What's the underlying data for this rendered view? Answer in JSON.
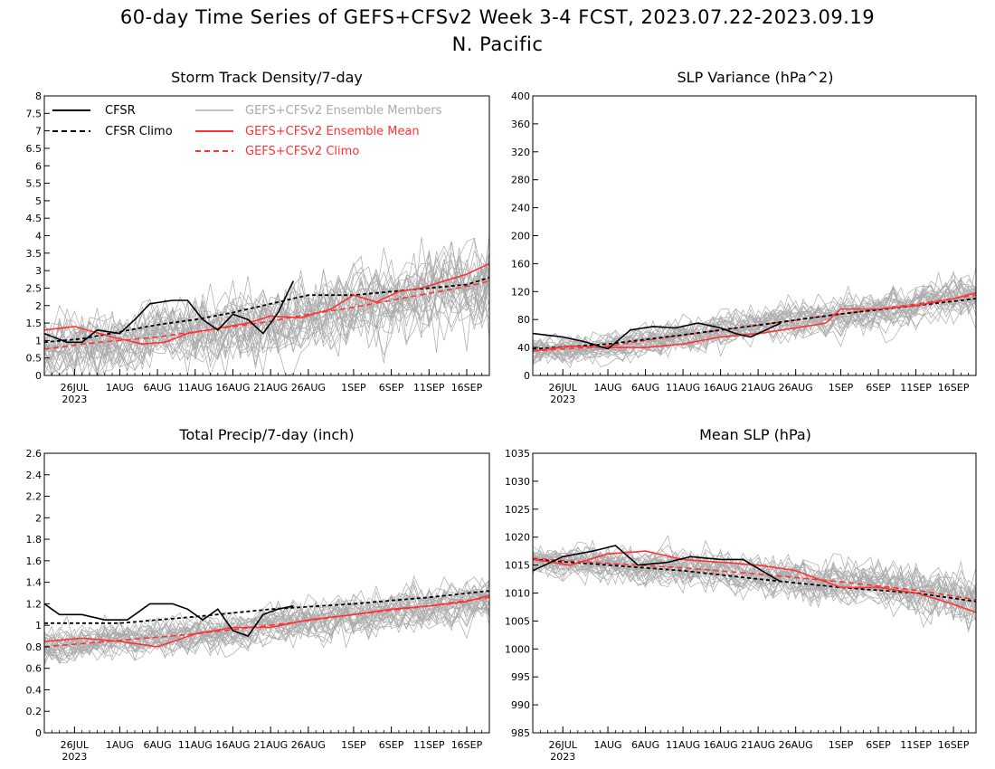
{
  "figure": {
    "title": "60-day Time Series of GEFS+CFSv2 Week 3-4 FCST, 2023.07.22-2023.09.19",
    "subtitle": "N. Pacific"
  },
  "colors": {
    "cfsr": "#000000",
    "members": "#aaaaaa",
    "ens_mean": "#ff3333",
    "ens_climo": "#ff3333"
  },
  "legend": {
    "cfsr": "CFSR",
    "cfsr_climo": "CFSR Climo",
    "members": "GEFS+CFSv2 Ensemble Members",
    "ens_mean": "GEFS+CFSv2 Ensemble Mean",
    "ens_climo": "GEFS+CFSv2 Climo"
  },
  "x_axis": {
    "days": 60,
    "start": "2023-07-22",
    "end": "2023-09-19",
    "year_label": "2023",
    "ticks": [
      {
        "date": "2023-07-26",
        "label": "26JUL"
      },
      {
        "date": "2023-08-01",
        "label": "1AUG"
      },
      {
        "date": "2023-08-06",
        "label": "6AUG"
      },
      {
        "date": "2023-08-11",
        "label": "11AUG"
      },
      {
        "date": "2023-08-16",
        "label": "16AUG"
      },
      {
        "date": "2023-08-21",
        "label": "21AUG"
      },
      {
        "date": "2023-08-26",
        "label": "26AUG"
      },
      {
        "date": "2023-09-01",
        "label": "1SEP"
      },
      {
        "date": "2023-09-06",
        "label": "6SEP"
      },
      {
        "date": "2023-09-11",
        "label": "11SEP"
      },
      {
        "date": "2023-09-16",
        "label": "16SEP"
      }
    ]
  },
  "chart_data": [
    {
      "type": "line",
      "title": "Storm Track Density/7-day",
      "ylim": [
        0,
        8
      ],
      "yticks": [
        "0",
        "0.5",
        "1",
        "1.5",
        "2",
        "2.5",
        "3",
        "3.5",
        "4",
        "4.5",
        "5",
        "5.5",
        "6",
        "6.5",
        "7",
        "7.5",
        "8"
      ],
      "members": {
        "count": 30,
        "spread": 0.8,
        "spread_end": 1.15
      },
      "series": [
        {
          "name": "CFSR",
          "x": [
            "2023-07-22",
            "2023-07-25",
            "2023-07-27",
            "2023-07-29",
            "2023-08-01",
            "2023-08-03",
            "2023-08-05",
            "2023-08-08",
            "2023-08-10",
            "2023-08-12",
            "2023-08-14",
            "2023-08-16",
            "2023-08-18",
            "2023-08-20",
            "2023-08-22",
            "2023-08-24"
          ],
          "values": [
            1.2,
            0.95,
            0.95,
            1.3,
            1.2,
            1.6,
            2.05,
            2.15,
            2.15,
            1.6,
            1.3,
            1.75,
            1.6,
            1.2,
            1.8,
            2.7
          ]
        },
        {
          "name": "CFSR Climo",
          "x": [
            "2023-07-22",
            "2023-07-27",
            "2023-08-01",
            "2023-08-06",
            "2023-08-11",
            "2023-08-16",
            "2023-08-21",
            "2023-08-26",
            "2023-09-01",
            "2023-09-06",
            "2023-09-11",
            "2023-09-16",
            "2023-09-19"
          ],
          "values": [
            0.95,
            1.05,
            1.25,
            1.45,
            1.6,
            1.8,
            2.05,
            2.3,
            2.3,
            2.4,
            2.5,
            2.6,
            2.8
          ]
        },
        {
          "name": "GEFS+CFSv2 Ensemble Mean",
          "x": [
            "2023-07-22",
            "2023-07-26",
            "2023-07-31",
            "2023-08-04",
            "2023-08-07",
            "2023-08-10",
            "2023-08-14",
            "2023-08-18",
            "2023-08-21",
            "2023-08-25",
            "2023-08-29",
            "2023-09-01",
            "2023-09-04",
            "2023-09-07",
            "2023-09-10",
            "2023-09-13",
            "2023-09-16",
            "2023-09-19"
          ],
          "values": [
            1.3,
            1.4,
            1.1,
            0.9,
            0.95,
            1.2,
            1.35,
            1.5,
            1.7,
            1.65,
            1.9,
            2.3,
            2.1,
            2.4,
            2.5,
            2.7,
            2.9,
            3.2
          ]
        },
        {
          "name": "GEFS+CFSv2 Climo",
          "x": [
            "2023-07-22",
            "2023-07-27",
            "2023-08-01",
            "2023-08-06",
            "2023-08-11",
            "2023-08-16",
            "2023-08-21",
            "2023-08-26",
            "2023-09-01",
            "2023-09-06",
            "2023-09-11",
            "2023-09-16",
            "2023-09-19"
          ],
          "values": [
            0.75,
            0.9,
            1.0,
            1.1,
            1.25,
            1.4,
            1.55,
            1.75,
            1.95,
            2.15,
            2.35,
            2.55,
            2.7
          ]
        }
      ]
    },
    {
      "type": "line",
      "title": "SLP Variance (hPa^2)",
      "ylim": [
        0,
        400
      ],
      "yticks": [
        "0",
        "40",
        "80",
        "120",
        "160",
        "200",
        "240",
        "280",
        "320",
        "360",
        "400"
      ],
      "members": {
        "count": 30,
        "spread": 18,
        "spread_end": 30
      },
      "series": [
        {
          "name": "CFSR",
          "x": [
            "2023-07-22",
            "2023-07-26",
            "2023-07-29",
            "2023-08-01",
            "2023-08-04",
            "2023-08-07",
            "2023-08-10",
            "2023-08-13",
            "2023-08-16",
            "2023-08-18",
            "2023-08-20",
            "2023-08-24"
          ],
          "values": [
            60,
            55,
            48,
            38,
            65,
            70,
            68,
            75,
            68,
            60,
            55,
            75
          ]
        },
        {
          "name": "CFSR Climo",
          "x": [
            "2023-07-22",
            "2023-08-01",
            "2023-08-11",
            "2023-08-21",
            "2023-09-01",
            "2023-09-11",
            "2023-09-19"
          ],
          "values": [
            38,
            45,
            58,
            72,
            88,
            100,
            110
          ]
        },
        {
          "name": "GEFS+CFSv2 Ensemble Mean",
          "x": [
            "2023-07-22",
            "2023-07-27",
            "2023-08-01",
            "2023-08-06",
            "2023-08-11",
            "2023-08-16",
            "2023-08-21",
            "2023-08-26",
            "2023-08-30",
            "2023-09-01",
            "2023-09-06",
            "2023-09-11",
            "2023-09-16",
            "2023-09-19"
          ],
          "values": [
            35,
            42,
            40,
            40,
            45,
            55,
            60,
            68,
            75,
            95,
            95,
            100,
            110,
            118
          ]
        },
        {
          "name": "GEFS+CFSv2 Climo",
          "x": [
            "2023-07-22",
            "2023-08-01",
            "2023-08-11",
            "2023-08-21",
            "2023-09-01",
            "2023-09-11",
            "2023-09-19"
          ],
          "values": [
            35,
            42,
            58,
            72,
            88,
            102,
            115
          ]
        }
      ]
    },
    {
      "type": "line",
      "title": "Total Precip/7-day (inch)",
      "ylim": [
        0,
        2.6
      ],
      "yticks": [
        "0",
        "0.2",
        "0.4",
        "0.6",
        "0.8",
        "1",
        "1.2",
        "1.4",
        "1.6",
        "1.8",
        "2",
        "2.2",
        "2.4",
        "2.6"
      ],
      "members": {
        "count": 30,
        "spread": 0.15,
        "spread_end": 0.2
      },
      "series": [
        {
          "name": "CFSR",
          "x": [
            "2023-07-22",
            "2023-07-24",
            "2023-07-27",
            "2023-07-30",
            "2023-08-02",
            "2023-08-05",
            "2023-08-08",
            "2023-08-10",
            "2023-08-12",
            "2023-08-14",
            "2023-08-16",
            "2023-08-18",
            "2023-08-20",
            "2023-08-22",
            "2023-08-24"
          ],
          "values": [
            1.2,
            1.1,
            1.1,
            1.05,
            1.05,
            1.2,
            1.2,
            1.15,
            1.05,
            1.15,
            0.95,
            0.9,
            1.1,
            1.15,
            1.18
          ]
        },
        {
          "name": "CFSR Climo",
          "x": [
            "2023-07-22",
            "2023-08-01",
            "2023-08-11",
            "2023-08-21",
            "2023-09-01",
            "2023-09-11",
            "2023-09-19"
          ],
          "values": [
            1.02,
            1.02,
            1.08,
            1.15,
            1.2,
            1.26,
            1.32
          ]
        },
        {
          "name": "GEFS+CFSv2 Ensemble Mean",
          "x": [
            "2023-07-22",
            "2023-07-27",
            "2023-08-01",
            "2023-08-06",
            "2023-08-11",
            "2023-08-16",
            "2023-08-21",
            "2023-08-26",
            "2023-09-01",
            "2023-09-06",
            "2023-09-11",
            "2023-09-16",
            "2023-09-19"
          ],
          "values": [
            0.85,
            0.88,
            0.85,
            0.8,
            0.92,
            0.98,
            0.98,
            1.05,
            1.1,
            1.15,
            1.18,
            1.22,
            1.28
          ]
        },
        {
          "name": "GEFS+CFSv2 Climo",
          "x": [
            "2023-07-22",
            "2023-08-01",
            "2023-08-11",
            "2023-08-21",
            "2023-09-01",
            "2023-09-11",
            "2023-09-19"
          ],
          "values": [
            0.8,
            0.86,
            0.92,
            1.0,
            1.1,
            1.18,
            1.26
          ]
        }
      ]
    },
    {
      "type": "line",
      "title": "Mean SLP (hPa)",
      "ylim": [
        985,
        1035
      ],
      "yticks": [
        "985",
        "990",
        "995",
        "1000",
        "1005",
        "1010",
        "1015",
        "1020",
        "1025",
        "1030",
        "1035"
      ],
      "members": {
        "count": 30,
        "spread": 2.5,
        "spread_end": 4.5
      },
      "series": [
        {
          "name": "CFSR",
          "x": [
            "2023-07-22",
            "2023-07-26",
            "2023-07-30",
            "2023-08-02",
            "2023-08-05",
            "2023-08-09",
            "2023-08-12",
            "2023-08-16",
            "2023-08-19",
            "2023-08-24"
          ],
          "values": [
            1014,
            1016.5,
            1017.5,
            1018.5,
            1015,
            1015.5,
            1016.5,
            1016,
            1016,
            1012
          ]
        },
        {
          "name": "CFSR Climo",
          "x": [
            "2023-07-22",
            "2023-08-01",
            "2023-08-11",
            "2023-08-21",
            "2023-09-01",
            "2023-09-11",
            "2023-09-19"
          ],
          "values": [
            1016,
            1015,
            1014,
            1012.5,
            1011,
            1010,
            1008.5
          ]
        },
        {
          "name": "GEFS+CFSv2 Ensemble Mean",
          "x": [
            "2023-07-22",
            "2023-07-27",
            "2023-08-01",
            "2023-08-06",
            "2023-08-11",
            "2023-08-16",
            "2023-08-21",
            "2023-08-26",
            "2023-09-01",
            "2023-09-06",
            "2023-09-11",
            "2023-09-16",
            "2023-09-19"
          ],
          "values": [
            1016,
            1015,
            1017,
            1017.5,
            1016,
            1015.5,
            1015,
            1014,
            1011,
            1011,
            1010,
            1008,
            1006.5
          ]
        },
        {
          "name": "GEFS+CFSv2 Climo",
          "x": [
            "2023-07-22",
            "2023-08-01",
            "2023-08-11",
            "2023-08-21",
            "2023-09-01",
            "2023-09-11",
            "2023-09-19"
          ],
          "values": [
            1016.2,
            1015.3,
            1014.5,
            1013.4,
            1012,
            1010.5,
            1008.8
          ]
        }
      ]
    }
  ]
}
